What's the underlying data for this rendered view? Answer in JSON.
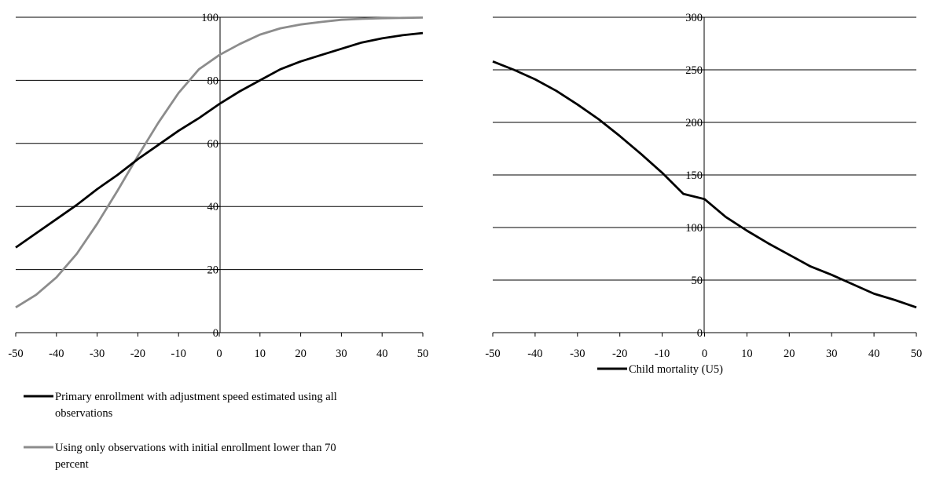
{
  "chart_data": [
    {
      "type": "line",
      "xlabel": "",
      "ylabel": "",
      "xlim": [
        -50,
        50
      ],
      "ylim": [
        0,
        100
      ],
      "xticks": [
        "-50",
        "-40",
        "-30",
        "-20",
        "-10",
        "0",
        "10",
        "20",
        "30",
        "40",
        "50"
      ],
      "yticks": [
        "0",
        "20",
        "40",
        "60",
        "80",
        "100"
      ],
      "grid": true,
      "legend_position": "bottom",
      "series": [
        {
          "name": "Primary enrollment with adjustment speed estimated using all observations",
          "color": "#000000",
          "x": [
            -50,
            -45,
            -40,
            -35,
            -30,
            -25,
            -20,
            -15,
            -10,
            -5,
            0,
            5,
            10,
            15,
            20,
            25,
            30,
            35,
            40,
            45,
            50
          ],
          "y": [
            27,
            31.5,
            36,
            40.5,
            45.5,
            50,
            55,
            59.5,
            64,
            68,
            72.5,
            76.5,
            80,
            83.5,
            86,
            88,
            90,
            92,
            93.3,
            94.3,
            95
          ]
        },
        {
          "name": "Using only observations with initial enrollment lower than 70 percent",
          "color": "#8c8c8c",
          "x": [
            -50,
            -45,
            -40,
            -35,
            -30,
            -25,
            -20,
            -15,
            -10,
            -5,
            0,
            5,
            10,
            15,
            20,
            25,
            30,
            35,
            40,
            45,
            50
          ],
          "y": [
            8,
            12,
            17.5,
            25,
            34.5,
            45,
            56,
            66.5,
            76,
            83.5,
            88,
            91.5,
            94.5,
            96.5,
            97.7,
            98.5,
            99.2,
            99.5,
            99.7,
            99.8,
            99.9
          ]
        }
      ]
    },
    {
      "type": "line",
      "xlabel": "",
      "ylabel": "",
      "xlim": [
        -50,
        50
      ],
      "ylim": [
        0,
        300
      ],
      "xticks": [
        "-50",
        "-40",
        "-30",
        "-20",
        "-10",
        "0",
        "10",
        "20",
        "30",
        "40",
        "50"
      ],
      "yticks": [
        "0",
        "50",
        "100",
        "150",
        "200",
        "250",
        "300"
      ],
      "grid": true,
      "legend_position": "bottom",
      "series": [
        {
          "name": "Child mortality (U5)",
          "color": "#000000",
          "x": [
            -50,
            -45,
            -40,
            -35,
            -30,
            -25,
            -20,
            -15,
            -10,
            -5,
            0,
            5,
            10,
            15,
            20,
            25,
            30,
            35,
            40,
            45,
            50
          ],
          "y": [
            258,
            250,
            241,
            230,
            217,
            203,
            187,
            170,
            152,
            132,
            127,
            110,
            97,
            85,
            74,
            63,
            55,
            46,
            37,
            31,
            24
          ]
        }
      ]
    }
  ]
}
